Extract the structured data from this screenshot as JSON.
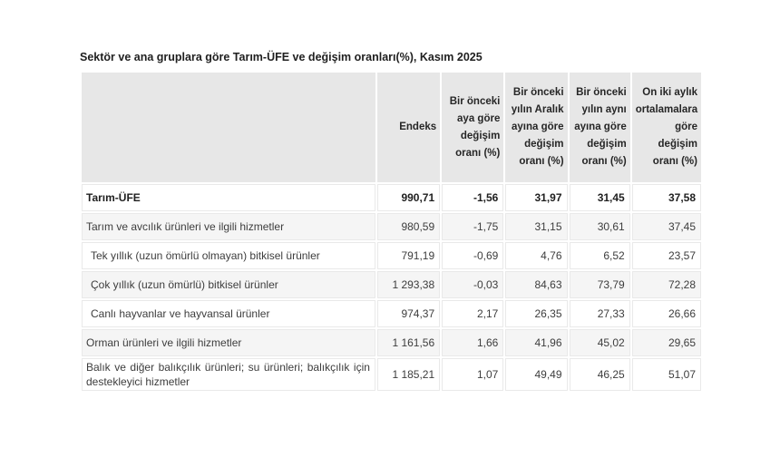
{
  "title": "Sektör ve ana gruplara göre Tarım-ÜFE ve değişim oranları(%), Kasım 2025",
  "table": {
    "columns": [
      "",
      "Endeks",
      "Bir önceki aya göre değişim oranı (%)",
      "Bir önceki yılın Aralık ayına göre değişim oranı (%)",
      "Bir önceki yılın aynı ayına göre değişim oranı (%)",
      "On iki aylık ortalamalara göre değişim oranı (%)"
    ],
    "rows": [
      {
        "label": "Tarım-ÜFE",
        "bold": true,
        "indent": false,
        "values": [
          "990,71",
          "-1,56",
          "31,97",
          "31,45",
          "37,58"
        ]
      },
      {
        "label": "Tarım ve avcılık ürünleri ve ilgili hizmetler",
        "bold": false,
        "indent": false,
        "values": [
          "980,59",
          "-1,75",
          "31,15",
          "30,61",
          "37,45"
        ]
      },
      {
        "label": "Tek yıllık (uzun ömürlü olmayan) bitkisel ürünler",
        "bold": false,
        "indent": true,
        "values": [
          "791,19",
          "-0,69",
          "4,76",
          "6,52",
          "23,57"
        ]
      },
      {
        "label": "Çok yıllık (uzun ömürlü) bitkisel ürünler",
        "bold": false,
        "indent": true,
        "values": [
          "1 293,38",
          "-0,03",
          "84,63",
          "73,79",
          "72,28"
        ]
      },
      {
        "label": "Canlı hayvanlar ve hayvansal ürünler",
        "bold": false,
        "indent": true,
        "values": [
          "974,37",
          "2,17",
          "26,35",
          "27,33",
          "26,66"
        ]
      },
      {
        "label": "Orman ürünleri ve ilgili hizmetler",
        "bold": false,
        "indent": false,
        "values": [
          "1 161,56",
          "1,66",
          "41,96",
          "45,02",
          "29,65"
        ]
      },
      {
        "label": "Balık ve diğer balıkçılık ürünleri; su ürünleri; balıkçılık için destekleyici hizmetler",
        "bold": false,
        "indent": false,
        "values": [
          "1 185,21",
          "1,07",
          "49,49",
          "46,25",
          "51,07"
        ]
      }
    ]
  },
  "chart_data": {
    "type": "table",
    "title": "Sektör ve ana gruplara göre Tarım-ÜFE ve değişim oranları(%), Kasım 2025",
    "columns": [
      "Endeks",
      "Bir önceki aya göre değişim oranı (%)",
      "Bir önceki yılın Aralık ayına göre değişim oranı (%)",
      "Bir önceki yılın aynı ayına göre değişim oranı (%)",
      "On iki aylık ortalamalara göre değişim oranı (%)"
    ],
    "rows": [
      {
        "label": "Tarım-ÜFE",
        "endeks": 990.71,
        "monthly_change": -1.56,
        "vs_previous_december": 31.97,
        "vs_same_month_prev_year": 31.45,
        "twelve_month_avg": 37.58
      },
      {
        "label": "Tarım ve avcılık ürünleri ve ilgili hizmetler",
        "endeks": 980.59,
        "monthly_change": -1.75,
        "vs_previous_december": 31.15,
        "vs_same_month_prev_year": 30.61,
        "twelve_month_avg": 37.45
      },
      {
        "label": "Tek yıllık (uzun ömürlü olmayan) bitkisel ürünler",
        "endeks": 791.19,
        "monthly_change": -0.69,
        "vs_previous_december": 4.76,
        "vs_same_month_prev_year": 6.52,
        "twelve_month_avg": 23.57
      },
      {
        "label": "Çok yıllık (uzun ömürlü) bitkisel ürünler",
        "endeks": 1293.38,
        "monthly_change": -0.03,
        "vs_previous_december": 84.63,
        "vs_same_month_prev_year": 73.79,
        "twelve_month_avg": 72.28
      },
      {
        "label": "Canlı hayvanlar ve hayvansal ürünler",
        "endeks": 974.37,
        "monthly_change": 2.17,
        "vs_previous_december": 26.35,
        "vs_same_month_prev_year": 27.33,
        "twelve_month_avg": 26.66
      },
      {
        "label": "Orman ürünleri ve ilgili hizmetler",
        "endeks": 1161.56,
        "monthly_change": 1.66,
        "vs_previous_december": 41.96,
        "vs_same_month_prev_year": 45.02,
        "twelve_month_avg": 29.65
      },
      {
        "label": "Balık ve diğer balıkçılık ürünleri; su ürünleri; balıkçılık için destekleyici hizmetler",
        "endeks": 1185.21,
        "monthly_change": 1.07,
        "vs_previous_december": 49.49,
        "vs_same_month_prev_year": 46.25,
        "twelve_month_avg": 51.07
      }
    ]
  },
  "colors": {
    "header_bg": "#e7e7e7",
    "row_alt_bg": "#f5f5f5",
    "cell_border": "#e9e9e9",
    "body_text": "#3d3d3d",
    "title_text": "#1f1f1f",
    "page_bg": "#ffffff"
  }
}
